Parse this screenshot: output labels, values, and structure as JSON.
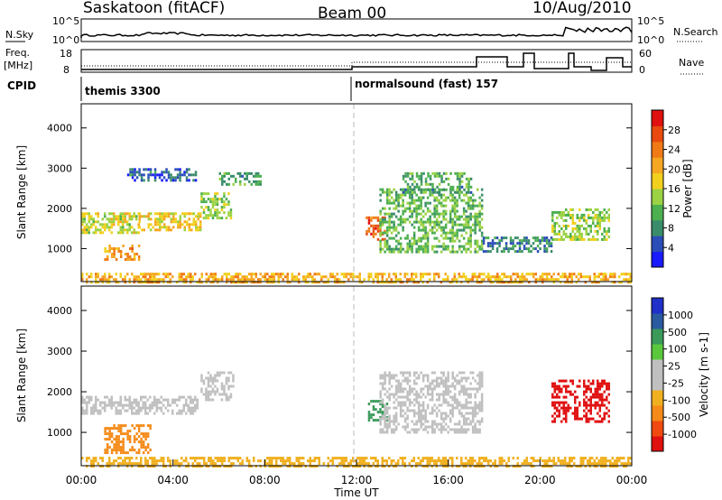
{
  "header": {
    "station": "Saskatoon (fitACF)",
    "beam": "Beam 00",
    "date": "10/Aug/2010"
  },
  "noise_panel": {
    "left_label": "N.Sky",
    "right_label": "N.Search",
    "tick_top": "10^5",
    "tick_bottom": "10^0"
  },
  "freq_panel": {
    "left_label_1": "Freq.",
    "left_label_2": "[MHz]",
    "left_tick_top": "18",
    "left_tick_bottom": "8",
    "right_tick_top": "60",
    "right_tick_bottom": "0",
    "right_label": "Nave"
  },
  "cpid_panel": {
    "label": "CPID",
    "modes": [
      {
        "name": "themis 3300",
        "start_hour": 0
      },
      {
        "name": "normalsound (fast) 157",
        "start_hour": 12
      }
    ]
  },
  "colors": {
    "power": [
      "#1a1aff",
      "#2a4db8",
      "#3a8c6a",
      "#4caf50",
      "#9bd243",
      "#f2d01e",
      "#f5a623",
      "#f07a16",
      "#e84a10",
      "#e01010"
    ],
    "velocity": [
      "#e01010",
      "#f04a10",
      "#f58a18",
      "#f0b020",
      "#c0c0c0",
      "#c0c0c0",
      "#5ac83c",
      "#3a9a5a",
      "#2a5aa0",
      "#2030c8"
    ]
  },
  "chart_data": [
    {
      "type": "heatmap",
      "panel": "power",
      "xlabel": "",
      "ylabel": "Slant Range [km]",
      "xlim": [
        0,
        24
      ],
      "ylim": [
        180,
        4600
      ],
      "yticks": [
        "1000",
        "2000",
        "3000",
        "4000"
      ],
      "colorbar_label": "Power [dB]",
      "colorbar_ticks": [
        "4",
        "8",
        "12",
        "16",
        "20",
        "24",
        "28"
      ],
      "colorbar_range": [
        0,
        32
      ],
      "regions": [
        {
          "t0": 0.0,
          "t1": 2.5,
          "r0": 1400,
          "r1": 1900,
          "value": 16
        },
        {
          "t0": 2.5,
          "t1": 5.2,
          "r0": 1450,
          "r1": 1900,
          "value": 18
        },
        {
          "t0": 5.2,
          "t1": 6.5,
          "r0": 1750,
          "r1": 2400,
          "value": 14
        },
        {
          "t0": 1.0,
          "t1": 2.5,
          "r0": 700,
          "r1": 1100,
          "value": 22
        },
        {
          "t0": 2.0,
          "t1": 5.0,
          "r0": 2700,
          "r1": 3000,
          "value": 6
        },
        {
          "t0": 6.0,
          "t1": 7.8,
          "r0": 2600,
          "r1": 2900,
          "value": 10
        },
        {
          "t0": 12.4,
          "t1": 13.2,
          "r0": 1250,
          "r1": 1800,
          "value": 26
        },
        {
          "t0": 13.0,
          "t1": 17.5,
          "r0": 900,
          "r1": 2500,
          "value": 12
        },
        {
          "t0": 14.0,
          "t1": 17.0,
          "r0": 2400,
          "r1": 2900,
          "value": 10
        },
        {
          "t0": 17.5,
          "t1": 20.5,
          "r0": 900,
          "r1": 1300,
          "value": 8
        },
        {
          "t0": 20.5,
          "t1": 23.0,
          "r0": 1200,
          "r1": 2000,
          "value": 14
        },
        {
          "t0": 0.0,
          "t1": 24.0,
          "r0": 180,
          "r1": 400,
          "value": 20
        }
      ]
    },
    {
      "type": "heatmap",
      "panel": "velocity",
      "xlabel": "Time UT",
      "ylabel": "Slant Range [km]",
      "xlim": [
        0,
        24
      ],
      "ylim": [
        180,
        4600
      ],
      "xticks": [
        "00:00",
        "04:00",
        "08:00",
        "12:00",
        "16:00",
        "20:00",
        "00:00"
      ],
      "yticks": [
        "1000",
        "2000",
        "3000",
        "4000"
      ],
      "colorbar_label": "Velocity [m s-1]",
      "colorbar_ticks": [
        "-1000",
        "-500",
        "-100",
        "-25",
        "25",
        "100",
        "500",
        "1000"
      ],
      "regions": [
        {
          "t0": 0.0,
          "t1": 5.2,
          "r0": 1500,
          "r1": 1900,
          "value": 0
        },
        {
          "t0": 5.2,
          "t1": 6.6,
          "r0": 1800,
          "r1": 2500,
          "value": 0
        },
        {
          "t0": 1.0,
          "t1": 3.0,
          "r0": 500,
          "r1": 1200,
          "value": -300
        },
        {
          "t0": 12.5,
          "t1": 13.3,
          "r0": 1300,
          "r1": 1800,
          "value": 150
        },
        {
          "t0": 13.0,
          "t1": 17.5,
          "r0": 1000,
          "r1": 2500,
          "value": 0
        },
        {
          "t0": 20.5,
          "t1": 23.0,
          "r0": 1300,
          "r1": 2300,
          "value": -800
        },
        {
          "t0": 0.0,
          "t1": 24.0,
          "r0": 180,
          "r1": 400,
          "value": -80
        }
      ]
    }
  ]
}
